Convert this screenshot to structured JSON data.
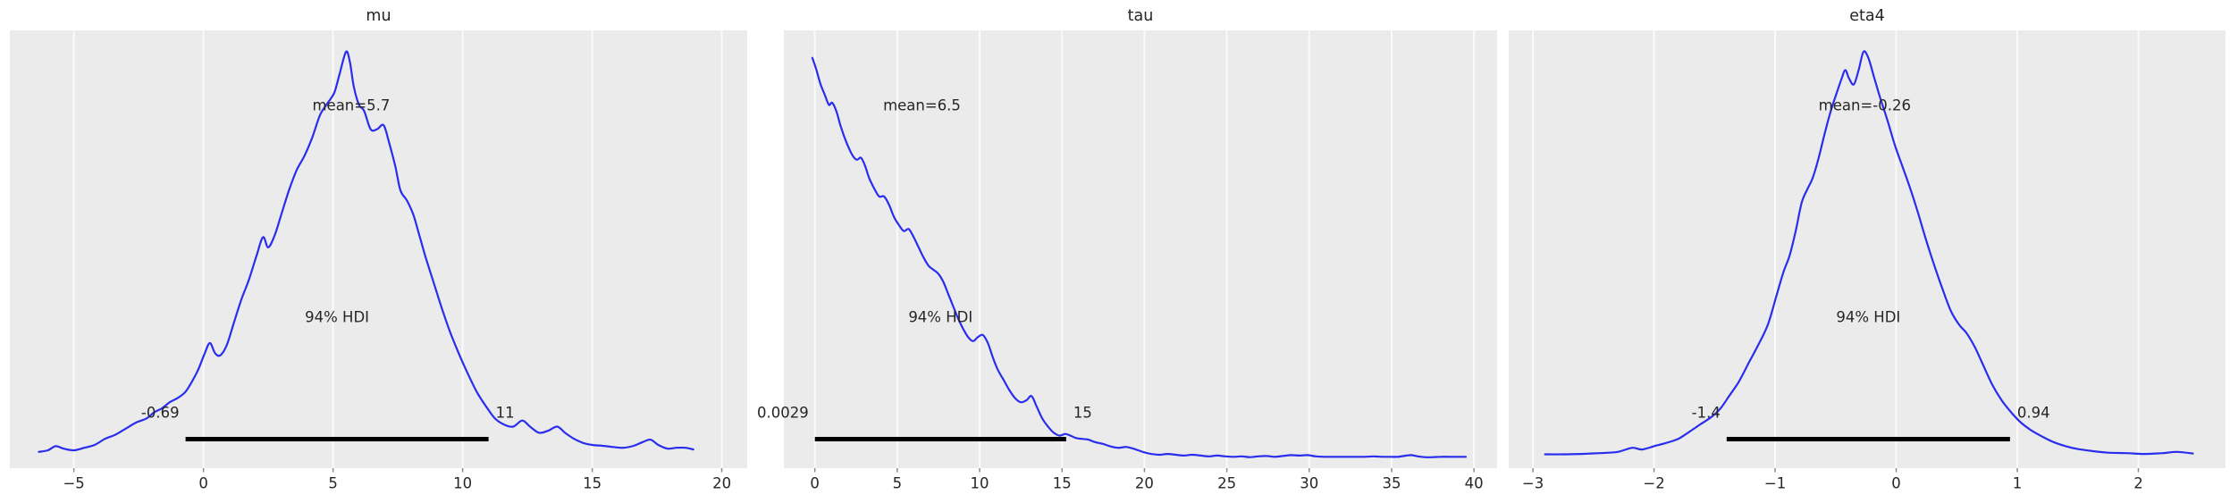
{
  "figure": {
    "background": "#ffffff",
    "kind": "posterior-plot"
  },
  "style": {
    "axes_bg": "#ebebeb",
    "grid_color": "#fafafa",
    "curve_color": "#2a2eec",
    "hdi_line_color": "#000000",
    "text_color": "#262626",
    "tick_mark_color": "#8a8a8a"
  },
  "chart_data": [
    {
      "type": "line",
      "subtype": "kde-posterior",
      "title": "mu",
      "mean": 5.7,
      "mean_label": "mean=5.7",
      "hdi": {
        "prob_label": "94% HDI",
        "lo": -0.69,
        "hi": 11,
        "lo_label": "-0.69",
        "hi_label": "11"
      },
      "xlim": [
        -7.47,
        20.98
      ],
      "ylim_note": "density normalized 0-1",
      "grid": true,
      "xticks": [
        {
          "value": -5,
          "label": "−5"
        },
        {
          "value": 0,
          "label": "0"
        },
        {
          "value": 5,
          "label": "5"
        },
        {
          "value": 10,
          "label": "10"
        },
        {
          "value": 15,
          "label": "15"
        },
        {
          "value": 20,
          "label": "20"
        }
      ],
      "points": [
        [
          -6.35,
          0.018
        ],
        [
          -6.0,
          0.022
        ],
        [
          -5.7,
          0.032
        ],
        [
          -5.4,
          0.026
        ],
        [
          -5.0,
          0.022
        ],
        [
          -4.6,
          0.028
        ],
        [
          -4.2,
          0.035
        ],
        [
          -3.8,
          0.05
        ],
        [
          -3.4,
          0.06
        ],
        [
          -3.0,
          0.075
        ],
        [
          -2.6,
          0.09
        ],
        [
          -2.2,
          0.1
        ],
        [
          -1.9,
          0.115
        ],
        [
          -1.6,
          0.125
        ],
        [
          -1.3,
          0.14
        ],
        [
          -1.0,
          0.15
        ],
        [
          -0.7,
          0.165
        ],
        [
          -0.45,
          0.19
        ],
        [
          -0.2,
          0.22
        ],
        [
          0.05,
          0.26
        ],
        [
          0.25,
          0.285
        ],
        [
          0.45,
          0.26
        ],
        [
          0.65,
          0.255
        ],
        [
          0.9,
          0.28
        ],
        [
          1.15,
          0.33
        ],
        [
          1.45,
          0.39
        ],
        [
          1.75,
          0.44
        ],
        [
          2.05,
          0.5
        ],
        [
          2.3,
          0.545
        ],
        [
          2.5,
          0.52
        ],
        [
          2.75,
          0.55
        ],
        [
          3.0,
          0.6
        ],
        [
          3.3,
          0.66
        ],
        [
          3.6,
          0.71
        ],
        [
          3.9,
          0.745
        ],
        [
          4.2,
          0.79
        ],
        [
          4.5,
          0.845
        ],
        [
          4.8,
          0.875
        ],
        [
          5.05,
          0.9
        ],
        [
          5.25,
          0.945
        ],
        [
          5.5,
          1.0
        ],
        [
          5.65,
          0.975
        ],
        [
          5.8,
          0.915
        ],
        [
          6.0,
          0.87
        ],
        [
          6.2,
          0.855
        ],
        [
          6.45,
          0.81
        ],
        [
          6.7,
          0.81
        ],
        [
          6.95,
          0.82
        ],
        [
          7.15,
          0.78
        ],
        [
          7.4,
          0.72
        ],
        [
          7.6,
          0.66
        ],
        [
          7.85,
          0.635
        ],
        [
          8.1,
          0.6
        ],
        [
          8.35,
          0.545
        ],
        [
          8.6,
          0.49
        ],
        [
          8.9,
          0.43
        ],
        [
          9.2,
          0.37
        ],
        [
          9.5,
          0.315
        ],
        [
          9.85,
          0.26
        ],
        [
          10.2,
          0.21
        ],
        [
          10.55,
          0.165
        ],
        [
          10.9,
          0.13
        ],
        [
          11.25,
          0.1
        ],
        [
          11.6,
          0.085
        ],
        [
          11.95,
          0.08
        ],
        [
          12.3,
          0.095
        ],
        [
          12.6,
          0.08
        ],
        [
          12.95,
          0.065
        ],
        [
          13.3,
          0.07
        ],
        [
          13.65,
          0.08
        ],
        [
          13.95,
          0.065
        ],
        [
          14.3,
          0.05
        ],
        [
          14.65,
          0.04
        ],
        [
          15.0,
          0.035
        ],
        [
          15.4,
          0.033
        ],
        [
          15.8,
          0.03
        ],
        [
          16.2,
          0.028
        ],
        [
          16.6,
          0.033
        ],
        [
          16.95,
          0.042
        ],
        [
          17.25,
          0.048
        ],
        [
          17.55,
          0.035
        ],
        [
          17.9,
          0.026
        ],
        [
          18.25,
          0.028
        ],
        [
          18.6,
          0.028
        ],
        [
          18.9,
          0.024
        ]
      ]
    },
    {
      "type": "line",
      "subtype": "kde-posterior",
      "title": "tau",
      "mean": 6.5,
      "mean_label": "mean=6.5",
      "hdi": {
        "prob_label": "94% HDI",
        "lo": 0.0029,
        "hi": 15.25,
        "lo_label": "0.0029",
        "hi_label": "15"
      },
      "xlim": [
        -1.88,
        41.4
      ],
      "ylim_note": "density normalized 0-1",
      "grid": true,
      "xticks": [
        {
          "value": 0,
          "label": "0"
        },
        {
          "value": 5,
          "label": "5"
        },
        {
          "value": 10,
          "label": "10"
        },
        {
          "value": 15,
          "label": "15"
        },
        {
          "value": 20,
          "label": "20"
        },
        {
          "value": 25,
          "label": "25"
        },
        {
          "value": 30,
          "label": "30"
        },
        {
          "value": 35,
          "label": "35"
        },
        {
          "value": 40,
          "label": "40"
        }
      ],
      "points": [
        [
          -0.15,
          0.985
        ],
        [
          0.1,
          0.955
        ],
        [
          0.35,
          0.92
        ],
        [
          0.6,
          0.895
        ],
        [
          0.85,
          0.87
        ],
        [
          1.05,
          0.875
        ],
        [
          1.3,
          0.855
        ],
        [
          1.55,
          0.82
        ],
        [
          1.8,
          0.79
        ],
        [
          2.05,
          0.765
        ],
        [
          2.3,
          0.745
        ],
        [
          2.55,
          0.735
        ],
        [
          2.8,
          0.74
        ],
        [
          3.05,
          0.72
        ],
        [
          3.3,
          0.69
        ],
        [
          3.6,
          0.665
        ],
        [
          3.9,
          0.645
        ],
        [
          4.2,
          0.645
        ],
        [
          4.5,
          0.625
        ],
        [
          4.8,
          0.595
        ],
        [
          5.1,
          0.575
        ],
        [
          5.4,
          0.56
        ],
        [
          5.7,
          0.565
        ],
        [
          6.0,
          0.545
        ],
        [
          6.3,
          0.52
        ],
        [
          6.6,
          0.495
        ],
        [
          6.9,
          0.475
        ],
        [
          7.2,
          0.465
        ],
        [
          7.5,
          0.455
        ],
        [
          7.8,
          0.435
        ],
        [
          8.1,
          0.405
        ],
        [
          8.4,
          0.375
        ],
        [
          8.7,
          0.345
        ],
        [
          9.0,
          0.32
        ],
        [
          9.3,
          0.3
        ],
        [
          9.6,
          0.29
        ],
        [
          9.9,
          0.3
        ],
        [
          10.2,
          0.305
        ],
        [
          10.5,
          0.285
        ],
        [
          10.8,
          0.25
        ],
        [
          11.1,
          0.22
        ],
        [
          11.45,
          0.195
        ],
        [
          11.8,
          0.17
        ],
        [
          12.15,
          0.15
        ],
        [
          12.5,
          0.14
        ],
        [
          12.85,
          0.145
        ],
        [
          13.15,
          0.155
        ],
        [
          13.45,
          0.13
        ],
        [
          13.8,
          0.1
        ],
        [
          14.15,
          0.08
        ],
        [
          14.5,
          0.065
        ],
        [
          14.85,
          0.058
        ],
        [
          15.2,
          0.062
        ],
        [
          15.5,
          0.058
        ],
        [
          15.85,
          0.052
        ],
        [
          16.2,
          0.05
        ],
        [
          16.6,
          0.048
        ],
        [
          17.0,
          0.042
        ],
        [
          17.45,
          0.038
        ],
        [
          17.9,
          0.032
        ],
        [
          18.4,
          0.028
        ],
        [
          18.9,
          0.03
        ],
        [
          19.4,
          0.025
        ],
        [
          19.9,
          0.018
        ],
        [
          20.4,
          0.013
        ],
        [
          20.9,
          0.011
        ],
        [
          21.4,
          0.013
        ],
        [
          21.9,
          0.011
        ],
        [
          22.4,
          0.009
        ],
        [
          22.9,
          0.011
        ],
        [
          23.4,
          0.009
        ],
        [
          23.9,
          0.007
        ],
        [
          24.4,
          0.009
        ],
        [
          24.9,
          0.007
        ],
        [
          25.4,
          0.006
        ],
        [
          25.9,
          0.007
        ],
        [
          26.4,
          0.005
        ],
        [
          26.9,
          0.007
        ],
        [
          27.4,
          0.008
        ],
        [
          27.9,
          0.006
        ],
        [
          28.4,
          0.008
        ],
        [
          28.9,
          0.01
        ],
        [
          29.4,
          0.009
        ],
        [
          29.9,
          0.01
        ],
        [
          30.4,
          0.007
        ],
        [
          30.9,
          0.006
        ],
        [
          31.4,
          0.006
        ],
        [
          31.9,
          0.006
        ],
        [
          32.4,
          0.006
        ],
        [
          32.9,
          0.006
        ],
        [
          33.4,
          0.006
        ],
        [
          33.9,
          0.007
        ],
        [
          34.4,
          0.006
        ],
        [
          34.9,
          0.006
        ],
        [
          35.4,
          0.006
        ],
        [
          35.9,
          0.009
        ],
        [
          36.2,
          0.01
        ],
        [
          36.6,
          0.007
        ],
        [
          37.0,
          0.005
        ],
        [
          37.5,
          0.005
        ],
        [
          38.0,
          0.006
        ],
        [
          38.5,
          0.006
        ],
        [
          39.0,
          0.006
        ],
        [
          39.5,
          0.006
        ]
      ]
    },
    {
      "type": "line",
      "subtype": "kde-posterior",
      "title": "eta4",
      "mean": -0.26,
      "mean_label": "mean=-0.26",
      "hdi": {
        "prob_label": "94% HDI",
        "lo": -1.4,
        "hi": 0.94,
        "lo_label": "-1.4",
        "hi_label": "0.94"
      },
      "xlim": [
        -3.2,
        2.72
      ],
      "ylim_note": "density normalized 0-1",
      "grid": true,
      "xticks": [
        {
          "value": -3,
          "label": "−3"
        },
        {
          "value": -2,
          "label": "−2"
        },
        {
          "value": -1,
          "label": "−1"
        },
        {
          "value": 0,
          "label": "0"
        },
        {
          "value": 1,
          "label": "1"
        },
        {
          "value": 2,
          "label": "2"
        }
      ],
      "points": [
        [
          -2.9,
          0.012
        ],
        [
          -2.75,
          0.012
        ],
        [
          -2.6,
          0.013
        ],
        [
          -2.45,
          0.015
        ],
        [
          -2.3,
          0.018
        ],
        [
          -2.18,
          0.028
        ],
        [
          -2.1,
          0.024
        ],
        [
          -2.0,
          0.032
        ],
        [
          -1.9,
          0.04
        ],
        [
          -1.8,
          0.05
        ],
        [
          -1.72,
          0.065
        ],
        [
          -1.62,
          0.085
        ],
        [
          -1.52,
          0.105
        ],
        [
          -1.45,
          0.125
        ],
        [
          -1.38,
          0.155
        ],
        [
          -1.3,
          0.19
        ],
        [
          -1.22,
          0.235
        ],
        [
          -1.14,
          0.28
        ],
        [
          -1.06,
          0.33
        ],
        [
          -0.99,
          0.4
        ],
        [
          -0.93,
          0.46
        ],
        [
          -0.88,
          0.5
        ],
        [
          -0.83,
          0.56
        ],
        [
          -0.78,
          0.63
        ],
        [
          -0.73,
          0.665
        ],
        [
          -0.69,
          0.69
        ],
        [
          -0.64,
          0.74
        ],
        [
          -0.59,
          0.8
        ],
        [
          -0.54,
          0.855
        ],
        [
          -0.49,
          0.9
        ],
        [
          -0.45,
          0.935
        ],
        [
          -0.42,
          0.955
        ],
        [
          -0.39,
          0.935
        ],
        [
          -0.35,
          0.92
        ],
        [
          -0.31,
          0.955
        ],
        [
          -0.27,
          1.0
        ],
        [
          -0.23,
          0.985
        ],
        [
          -0.18,
          0.935
        ],
        [
          -0.13,
          0.885
        ],
        [
          -0.07,
          0.83
        ],
        [
          -0.01,
          0.77
        ],
        [
          0.05,
          0.72
        ],
        [
          0.11,
          0.67
        ],
        [
          0.17,
          0.615
        ],
        [
          0.24,
          0.545
        ],
        [
          0.31,
          0.48
        ],
        [
          0.38,
          0.42
        ],
        [
          0.45,
          0.365
        ],
        [
          0.52,
          0.33
        ],
        [
          0.58,
          0.31
        ],
        [
          0.65,
          0.275
        ],
        [
          0.72,
          0.23
        ],
        [
          0.79,
          0.185
        ],
        [
          0.87,
          0.145
        ],
        [
          0.95,
          0.115
        ],
        [
          1.03,
          0.09
        ],
        [
          1.12,
          0.07
        ],
        [
          1.21,
          0.055
        ],
        [
          1.3,
          0.042
        ],
        [
          1.4,
          0.032
        ],
        [
          1.5,
          0.025
        ],
        [
          1.62,
          0.02
        ],
        [
          1.75,
          0.016
        ],
        [
          1.9,
          0.015
        ],
        [
          2.05,
          0.013
        ],
        [
          2.2,
          0.015
        ],
        [
          2.32,
          0.018
        ],
        [
          2.45,
          0.014
        ]
      ]
    }
  ]
}
